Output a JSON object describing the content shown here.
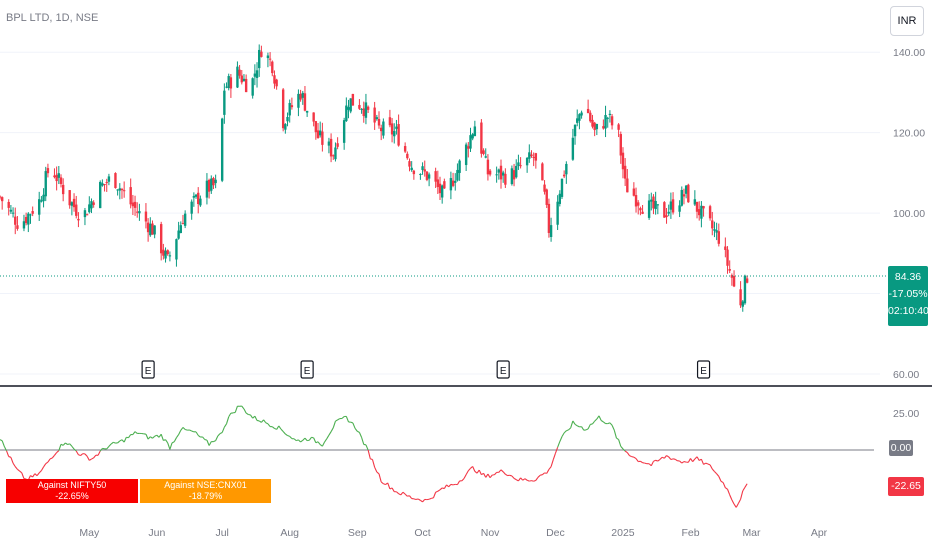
{
  "header": {
    "symbol_text": "BPL LTD, 1D, NSE",
    "currency_label": "INR"
  },
  "price_label": {
    "price": "84.36",
    "change": "-17.05%",
    "countdown": "02:10:40"
  },
  "indicator": {
    "zero_label": "0.00",
    "last_label": "-22.65",
    "table": [
      {
        "label": "Against NIFTY50",
        "value": "-22.65%",
        "color": "#f70000"
      },
      {
        "label": "Against NSE:CNX01",
        "value": "-18.79%",
        "color": "#ff9800"
      }
    ]
  },
  "earnings_marker_label": "E",
  "colors": {
    "up": "#089981",
    "down": "#f23645",
    "osc_pos": "#4caf50",
    "osc_neg": "#f23645",
    "zero_line": "#787b86"
  },
  "chart_data": [
    {
      "type": "candlestick",
      "title": "BPL LTD, 1D, NSE",
      "y_ticks": [
        60,
        80,
        100,
        120,
        140
      ],
      "y_tick_labels": [
        "60.00",
        "",
        "100.00",
        "120.00",
        "140.00"
      ],
      "ylim": [
        58.5,
        150.5
      ],
      "x_tick_labels": [
        "May",
        "Jun",
        "Jul",
        "Aug",
        "Sep",
        "Oct",
        "Nov",
        "Dec",
        "2025",
        "Feb",
        "Mar",
        "Apr"
      ],
      "x_tick_dates": [
        "2024-05-01",
        "2024-06-01",
        "2024-07-01",
        "2024-08-01",
        "2024-09-01",
        "2024-10-01",
        "2024-11-01",
        "2024-12-01",
        "2025-01-01",
        "2025-02-01",
        "2025-03-01",
        "2025-04-01"
      ],
      "xlim": [
        "2024-03-21",
        "2025-04-29"
      ],
      "last_price": 84.36,
      "earnings_dates": [
        "2024-05-28",
        "2024-08-09",
        "2024-11-07",
        "2025-02-07"
      ],
      "close_path": [
        [
          "2024-03-21",
          104
        ],
        [
          "2024-03-30",
          97
        ],
        [
          "2024-04-08",
          103
        ],
        [
          "2024-04-13",
          112
        ],
        [
          "2024-04-22",
          103
        ],
        [
          "2024-04-28",
          99
        ],
        [
          "2024-05-05",
          106
        ],
        [
          "2024-05-12",
          109
        ],
        [
          "2024-05-19",
          103
        ],
        [
          "2024-05-30",
          96
        ],
        [
          "2024-06-06",
          88
        ],
        [
          "2024-06-13",
          99
        ],
        [
          "2024-06-23",
          106
        ],
        [
          "2024-06-29",
          107
        ],
        [
          "2024-07-02",
          131
        ],
        [
          "2024-07-08",
          135
        ],
        [
          "2024-07-14",
          131
        ],
        [
          "2024-07-19",
          141
        ],
        [
          "2024-07-24",
          137
        ],
        [
          "2024-07-29",
          123
        ],
        [
          "2024-08-06",
          130
        ],
        [
          "2024-08-14",
          119
        ],
        [
          "2024-08-21",
          115
        ],
        [
          "2024-08-28",
          128
        ],
        [
          "2024-09-03",
          127
        ],
        [
          "2024-09-11",
          121
        ],
        [
          "2024-09-19",
          120
        ],
        [
          "2024-09-26",
          112
        ],
        [
          "2024-10-04",
          109
        ],
        [
          "2024-10-11",
          104
        ],
        [
          "2024-10-18",
          112
        ],
        [
          "2024-10-25",
          122
        ],
        [
          "2024-10-31",
          110
        ],
        [
          "2024-11-10",
          109
        ],
        [
          "2024-11-16",
          112
        ],
        [
          "2024-11-21",
          114
        ],
        [
          "2024-11-26",
          104
        ],
        [
          "2024-11-28",
          96
        ],
        [
          "2024-12-04",
          108
        ],
        [
          "2024-12-10",
          121
        ],
        [
          "2024-12-14",
          128
        ],
        [
          "2024-12-19",
          120
        ],
        [
          "2024-12-25",
          124
        ],
        [
          "2024-12-30",
          119
        ],
        [
          "2025-01-02",
          107
        ],
        [
          "2025-01-10",
          102
        ],
        [
          "2025-01-20",
          100
        ],
        [
          "2025-01-30",
          105
        ],
        [
          "2025-02-07",
          99
        ],
        [
          "2025-02-14",
          94
        ],
        [
          "2025-02-20",
          84
        ],
        [
          "2025-02-23",
          76
        ],
        [
          "2025-02-27",
          84.4
        ]
      ]
    },
    {
      "type": "line",
      "y_ticks": [
        25,
        0,
        -22.65
      ],
      "y_tick_labels": [
        "25.00",
        "0.00",
        "-22.65"
      ],
      "ylim": [
        -47,
        39
      ],
      "zero_line": 0,
      "series": [
        {
          "x": [
            "2024-03-21",
            "2024-03-28",
            "2024-04-02",
            "2024-04-08",
            "2024-04-14",
            "2024-04-20",
            "2024-04-26",
            "2024-05-02",
            "2024-05-09",
            "2024-05-16",
            "2024-05-23",
            "2024-05-29",
            "2024-06-03",
            "2024-06-07",
            "2024-06-12",
            "2024-06-18",
            "2024-06-25",
            "2024-06-30",
            "2024-07-04",
            "2024-07-09",
            "2024-07-15",
            "2024-07-22",
            "2024-07-28",
            "2024-08-04",
            "2024-08-10",
            "2024-08-16",
            "2024-08-22",
            "2024-08-27",
            "2024-09-01",
            "2024-09-05",
            "2024-09-12",
            "2024-09-19",
            "2024-09-26",
            "2024-10-03",
            "2024-10-10",
            "2024-10-17",
            "2024-10-24",
            "2024-10-30",
            "2024-11-07",
            "2024-11-14",
            "2024-11-21",
            "2024-11-28",
            "2024-12-03",
            "2024-12-09",
            "2024-12-15",
            "2024-12-21",
            "2024-12-27",
            "2024-12-31",
            "2025-01-07",
            "2025-01-14",
            "2025-01-21",
            "2025-01-28",
            "2025-02-04",
            "2025-02-11",
            "2025-02-17",
            "2025-02-22",
            "2025-02-27"
          ],
          "values": [
            8,
            -12,
            -20,
            -16,
            -4,
            6,
            -2,
            -6,
            2,
            6,
            12,
            8,
            10,
            2,
            14,
            12,
            4,
            10,
            22,
            30,
            22,
            18,
            14,
            6,
            8,
            4,
            18,
            22,
            14,
            2,
            -20,
            -28,
            -32,
            -34,
            -26,
            -22,
            -12,
            -18,
            -14,
            -20,
            -20,
            -14,
            6,
            18,
            14,
            22,
            16,
            2,
            -6,
            -10,
            -4,
            -8,
            -6,
            -12,
            -24,
            -38,
            -22.65
          ]
        }
      ]
    }
  ]
}
